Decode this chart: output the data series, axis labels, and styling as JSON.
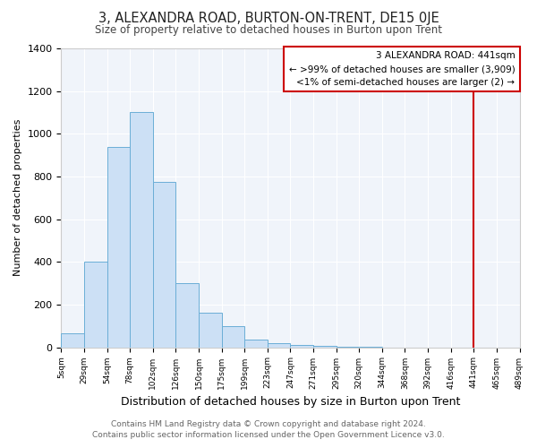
{
  "title": "3, ALEXANDRA ROAD, BURTON-ON-TRENT, DE15 0JE",
  "subtitle": "Size of property relative to detached houses in Burton upon Trent",
  "xlabel": "Distribution of detached houses by size in Burton upon Trent",
  "ylabel": "Number of detached properties",
  "bin_labels": [
    "5sqm",
    "29sqm",
    "54sqm",
    "78sqm",
    "102sqm",
    "126sqm",
    "150sqm",
    "175sqm",
    "199sqm",
    "223sqm",
    "247sqm",
    "271sqm",
    "295sqm",
    "320sqm",
    "344sqm",
    "368sqm",
    "392sqm",
    "416sqm",
    "441sqm",
    "465sqm",
    "489sqm"
  ],
  "bar_heights": [
    65,
    400,
    940,
    1100,
    775,
    300,
    160,
    100,
    35,
    20,
    10,
    5,
    3,
    1,
    0,
    0,
    0,
    0,
    0,
    0
  ],
  "bar_color": "#cce0f5",
  "bar_edge_color": "#6baed6",
  "annotation_line_color": "#cc0000",
  "ylim": [
    0,
    1400
  ],
  "yticks": [
    0,
    200,
    400,
    600,
    800,
    1000,
    1200,
    1400
  ],
  "legend_title": "3 ALEXANDRA ROAD: 441sqm",
  "legend_line1": "← >99% of detached houses are smaller (3,909)",
  "legend_line2": "<1% of semi-detached houses are larger (2) →",
  "footer_line1": "Contains HM Land Registry data © Crown copyright and database right 2024.",
  "footer_line2": "Contains public sector information licensed under the Open Government Licence v3.0.",
  "background_color": "#ffffff",
  "axes_bg_color": "#f0f4fa",
  "grid_color": "#ffffff"
}
